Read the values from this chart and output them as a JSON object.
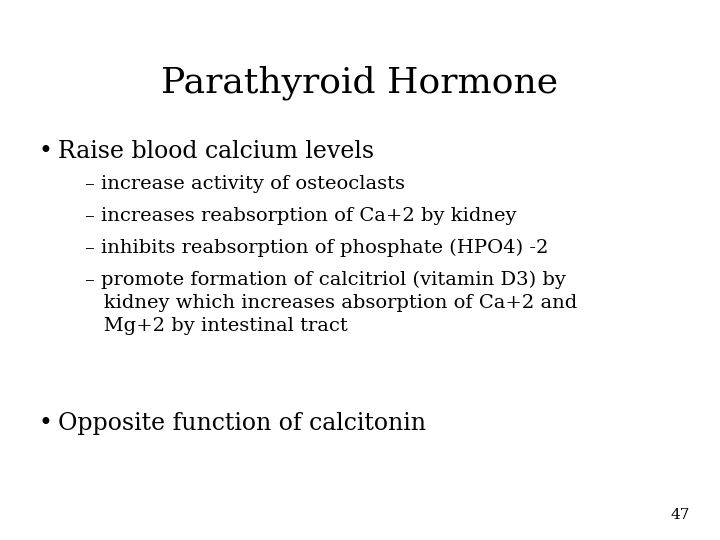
{
  "title": "Parathyroid Hormone",
  "background_color": "#ffffff",
  "text_color": "#000000",
  "title_fontsize": 26,
  "bullet_fontsize": 17,
  "sub_fontsize": 14,
  "page_number": "47",
  "bullet1": "Raise blood calcium levels",
  "sub_bullets": [
    "– increase activity of osteoclasts",
    "– increases reabsorption of Ca+2 by kidney",
    "– inhibits reabsorption of phosphate (HPO4) -2",
    "– promote formation of calcitriol (vitamin D3) by\n   kidney which increases absorption of Ca+2 and\n   Mg+2 by intestinal tract"
  ],
  "bullet2": "Opposite function of calcitonin",
  "font_family": "DejaVu Serif"
}
